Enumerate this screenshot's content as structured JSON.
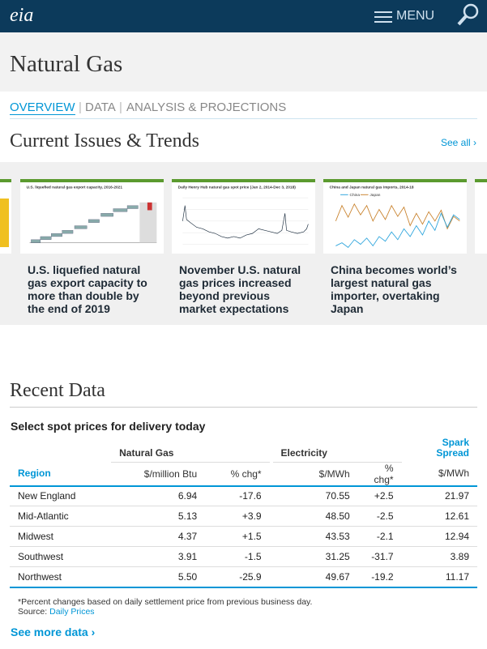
{
  "header": {
    "logo": "eia",
    "menu": "MENU"
  },
  "page_title": "Natural Gas",
  "tabs": [
    "OVERVIEW",
    "DATA",
    "ANALYSIS & PROJECTIONS"
  ],
  "issues": {
    "heading": "Current Issues & Trends",
    "see_all": "See all ›",
    "cards": [
      {
        "thumb_title": "U.S. liquefied natural gas export capacity, 2016-2021",
        "caption": "U.S. liquefied natural gas export capacity to more than double by the end of 2019"
      },
      {
        "thumb_title": "Daily Henry Hub natural gas spot price (Jan 2, 2014-Dec 3, 2018)",
        "caption": "November U.S. natural gas prices increased beyond previous market expectations"
      },
      {
        "thumb_title": "China and Japan natural gas imports, 2014-18",
        "legend": [
          "China",
          "Japan"
        ],
        "caption": "China becomes world’s largest natural gas importer, overtaking Japan"
      }
    ]
  },
  "recent": {
    "heading": "Recent Data",
    "subtitle": "Select spot prices for delivery today",
    "table": {
      "groups": [
        "Natural Gas",
        "Electricity",
        "Spark Spread"
      ],
      "columns": [
        "Region",
        "$/million Btu",
        "% chg*",
        "$/MWh",
        "% chg*",
        "$/MWh"
      ],
      "rows": [
        [
          "New England",
          "6.94",
          "-17.6",
          "70.55",
          "+2.5",
          "21.97"
        ],
        [
          "Mid-Atlantic",
          "5.13",
          "+3.9",
          "48.50",
          "-2.5",
          "12.61"
        ],
        [
          "Midwest",
          "4.37",
          "+1.5",
          "43.53",
          "-2.1",
          "12.94"
        ],
        [
          "Southwest",
          "3.91",
          "-1.5",
          "31.25",
          "-31.7",
          "3.89"
        ],
        [
          "Northwest",
          "5.50",
          "-25.9",
          "49.67",
          "-19.2",
          "11.17"
        ]
      ]
    },
    "footnote": "*Percent changes based on daily settlement price from previous business day.",
    "source_label": "Source:",
    "source_link": "Daily Prices",
    "see_more": "See more data ›"
  }
}
